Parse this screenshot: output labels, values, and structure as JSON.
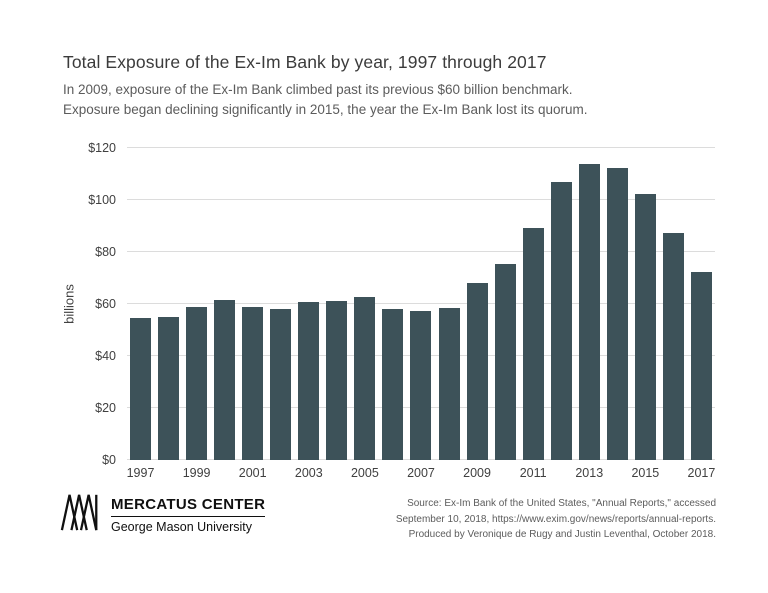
{
  "header": {
    "title": "Total Exposure of the Ex-Im Bank by year, 1997 through 2017",
    "subtitle_line1": "In 2009, exposure of the Ex-Im Bank climbed past its previous $60 billion benchmark.",
    "subtitle_line2": "Exposure began declining significantly in 2015, the year the Ex-Im Bank lost its quorum."
  },
  "chart_data": {
    "type": "bar",
    "title": "Total Exposure of the Ex-Im Bank by year, 1997 through 2017",
    "xlabel": "",
    "ylabel": "billions",
    "ylim": [
      0,
      120
    ],
    "ytick_step": 20,
    "ytick_prefix": "$",
    "grid": true,
    "legend": "none",
    "categories": [
      "1997",
      "1998",
      "1999",
      "2000",
      "2001",
      "2002",
      "2003",
      "2004",
      "2005",
      "2006",
      "2007",
      "2008",
      "2009",
      "2010",
      "2011",
      "2012",
      "2013",
      "2014",
      "2015",
      "2016",
      "2017"
    ],
    "x_ticks_shown": [
      "1997",
      "1999",
      "2001",
      "2003",
      "2005",
      "2007",
      "2009",
      "2011",
      "2013",
      "2015",
      "2017"
    ],
    "values": [
      54.8,
      55.0,
      58.9,
      61.5,
      58.8,
      58.0,
      60.9,
      61.0,
      62.8,
      58.0,
      57.5,
      58.5,
      68.0,
      75.2,
      89.2,
      106.8,
      113.8,
      112.2,
      102.2,
      87.3,
      72.5
    ],
    "colors": {
      "bar": "#3d5259",
      "grid": "#dcdcdc",
      "tick_text": "#404040"
    }
  },
  "footer": {
    "logo_name": "MERCATUS CENTER",
    "logo_sub": "George Mason University",
    "logo_icon": "mercatus-m-chevrons",
    "source_line1": "Source: Ex-Im Bank of the United States, \"Annual Reports,\" accessed",
    "source_line2": "September 10, 2018, https://www.exim.gov/news/reports/annual-reports.",
    "source_line3": "Produced by Veronique de Rugy and Justin Leventhal, October 2018."
  }
}
